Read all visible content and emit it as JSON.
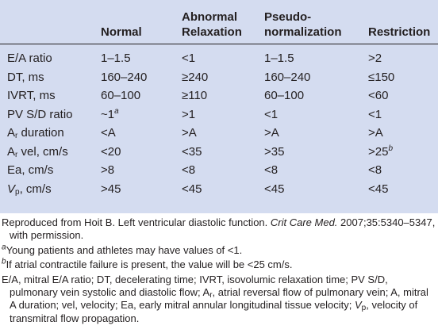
{
  "table": {
    "headers": [
      "",
      "Normal",
      "Abnormal\nRelaxation",
      "Pseudo-\nnormalization",
      "Restriction"
    ],
    "rows": [
      {
        "label": "E/A ratio",
        "values": [
          "1–1.5",
          "<1",
          "1–1.5",
          ">2"
        ]
      },
      {
        "label": "DT, ms",
        "values": [
          "160–240",
          "≥240",
          "160–240",
          "≤150"
        ]
      },
      {
        "label": "IVRT, ms",
        "values": [
          "60–100",
          "≥110",
          "60–100",
          "<60"
        ]
      },
      {
        "label": "PV S/D ratio",
        "values": [
          "~1",
          ">1",
          "<1",
          "<1"
        ],
        "normal_sup": "a"
      },
      {
        "label_main": "A",
        "label_sub": "r",
        "label_rest": " duration",
        "values": [
          "<A",
          ">A",
          ">A",
          ">A"
        ]
      },
      {
        "label_main": "A",
        "label_sub": "r",
        "label_rest": " vel, cm/s",
        "values": [
          "<20",
          "<35",
          ">35",
          ">25"
        ],
        "restriction_sup": "b"
      },
      {
        "label": "Ea, cm/s",
        "values": [
          ">8",
          "<8",
          "<8",
          "<8"
        ]
      },
      {
        "label_main": "V",
        "label_sub": "p",
        "label_rest": ", cm/s",
        "values": [
          ">45",
          "<45",
          "<45",
          "<45"
        ]
      }
    ]
  },
  "notes": {
    "source_pre": "Reproduced from Hoit B. Left ventricular diastolic function. ",
    "source_journal": "Crit Care Med.",
    "source_post": " 2007;35:5340–5347, with permission.",
    "footnote_a_mark": "a",
    "footnote_a": "Young patients and athletes may have values of <1.",
    "footnote_b_mark": "b",
    "footnote_b": "If atrial contractile failure is present, the value will be <25 cm/s.",
    "abbrev_1": "E/A, mitral E/A ratio; DT, decelerating time; IVRT, isovolumic relaxation time; PV S/D, pulmonary vein systolic and diastolic flow; A",
    "abbrev_ar_sub": "r",
    "abbrev_2": ", atrial reversal flow of pulmonary vein; A, mitral A duration; vel, velocity; Ea, early mitral annular longitudinal tissue velocity; ",
    "abbrev_vp_main": "V",
    "abbrev_vp_sub": "p",
    "abbrev_3": ", velocity of transmitral flow propagation."
  }
}
